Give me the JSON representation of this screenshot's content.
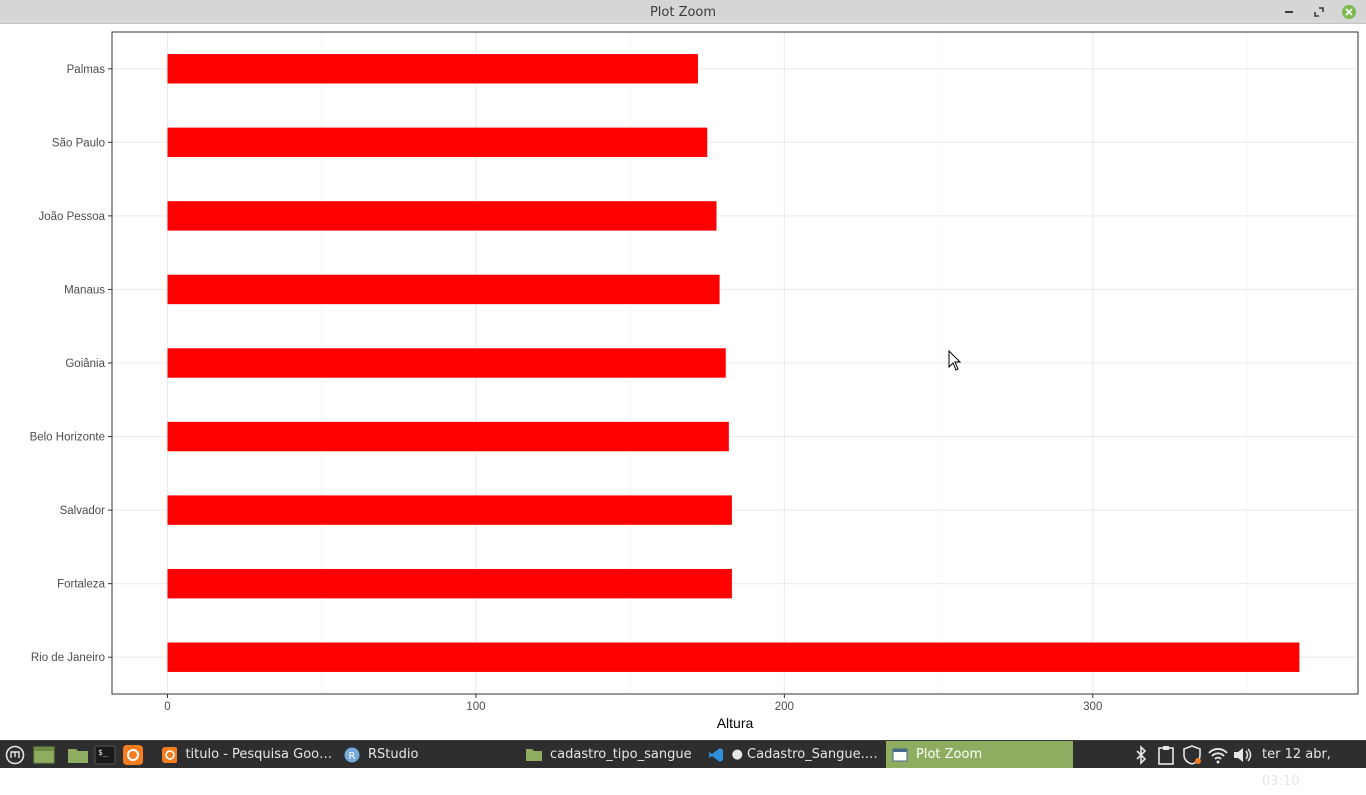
{
  "window": {
    "title": "Plot Zoom"
  },
  "chart_data": {
    "type": "bar",
    "orientation": "horizontal",
    "categories": [
      "Rio de Janeiro",
      "Fortaleza",
      "Salvador",
      "Belo Horizonte",
      "Goiânia",
      "Manaus",
      "João Pessoa",
      "São Paulo",
      "Palmas"
    ],
    "values": [
      367,
      183,
      183,
      182,
      181,
      179,
      178,
      175,
      172
    ],
    "xlabel": "Altura",
    "ylabel": "",
    "xlim": [
      -18,
      386
    ],
    "xticks": [
      0,
      100,
      200,
      300
    ],
    "bar_color": "#ff0000",
    "grid": true,
    "legend": "none"
  },
  "taskbar": {
    "tasks": [
      {
        "label": "titulo - Pesquisa Googl...",
        "icon": "firefox-icon",
        "active": false
      },
      {
        "label": "RStudio",
        "icon": "rstudio-icon",
        "active": false
      },
      {
        "label": "cadastro_tipo_sangue",
        "icon": "folder-icon",
        "active": false
      },
      {
        "label": "● Cadastro_Sangue.R ...",
        "icon": "vscode-icon",
        "active": false
      },
      {
        "label": "Plot Zoom",
        "icon": "window-icon",
        "active": true
      }
    ],
    "clock": "ter 12 abr, 03:10",
    "colors": {
      "background": "#2e2e2e",
      "active_task": "#8fad60"
    }
  }
}
